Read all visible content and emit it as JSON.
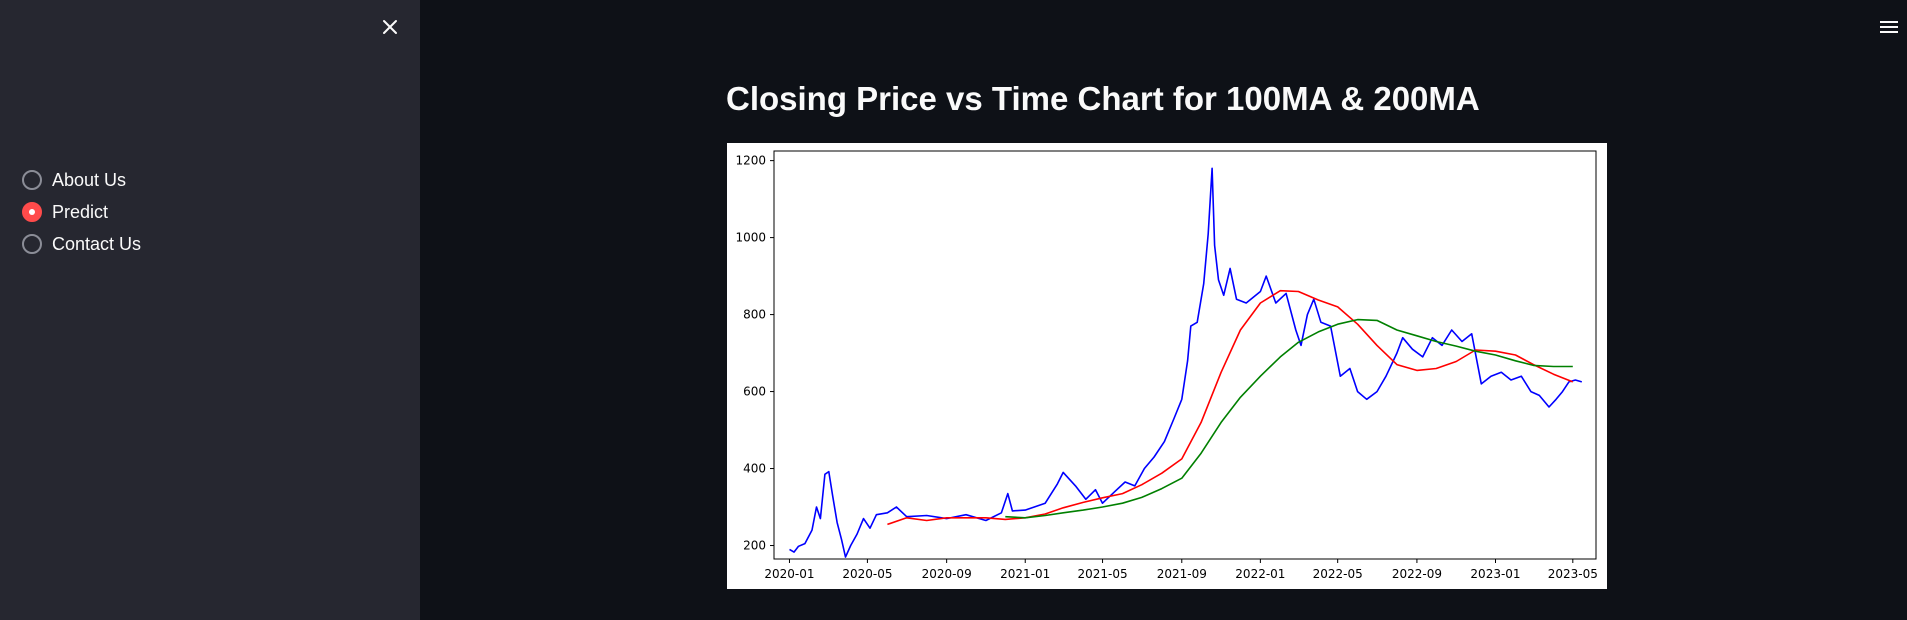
{
  "sidebar": {
    "radio_options": [
      {
        "label": "About Us",
        "selected": false
      },
      {
        "label": "Predict",
        "selected": true
      },
      {
        "label": "Contact Us",
        "selected": false
      }
    ]
  },
  "main": {
    "title": "Closing Price vs Time Chart for 100MA & 200MA"
  },
  "colors": {
    "accent": "#ff4b4b",
    "sidebar_bg": "#262730",
    "main_bg": "#0e1117"
  },
  "chart_data": {
    "type": "line",
    "title": "",
    "xlabel": "",
    "ylabel": "",
    "x_tick_labels": [
      "2020-01",
      "2020-05",
      "2020-09",
      "2021-01",
      "2021-05",
      "2021-09",
      "2022-01",
      "2022-05",
      "2022-09",
      "2023-01",
      "2023-05"
    ],
    "y_ticks": [
      200,
      400,
      600,
      800,
      1000,
      1200
    ],
    "xlim": [
      "2019-12-08",
      "2023-06-06"
    ],
    "ylim": [
      165,
      1225
    ],
    "legend": "none",
    "series": [
      {
        "color": "#0000ff",
        "points": [
          [
            "2020-01-01",
            190
          ],
          [
            "2020-01-08",
            183
          ],
          [
            "2020-01-15",
            198
          ],
          [
            "2020-01-25",
            205
          ],
          [
            "2020-02-05",
            240
          ],
          [
            "2020-02-12",
            300
          ],
          [
            "2020-02-18",
            270
          ],
          [
            "2020-02-25",
            385
          ],
          [
            "2020-03-02",
            392
          ],
          [
            "2020-03-08",
            330
          ],
          [
            "2020-03-15",
            260
          ],
          [
            "2020-03-22",
            215
          ],
          [
            "2020-03-28",
            170
          ],
          [
            "2020-04-05",
            200
          ],
          [
            "2020-04-15",
            230
          ],
          [
            "2020-04-25",
            270
          ],
          [
            "2020-05-05",
            245
          ],
          [
            "2020-05-15",
            280
          ],
          [
            "2020-06-01",
            285
          ],
          [
            "2020-06-15",
            300
          ],
          [
            "2020-07-01",
            275
          ],
          [
            "2020-08-01",
            278
          ],
          [
            "2020-09-01",
            270
          ],
          [
            "2020-10-01",
            280
          ],
          [
            "2020-11-01",
            265
          ],
          [
            "2020-11-25",
            285
          ],
          [
            "2020-12-05",
            335
          ],
          [
            "2020-12-12",
            290
          ],
          [
            "2021-01-01",
            292
          ],
          [
            "2021-01-15",
            300
          ],
          [
            "2021-02-01",
            310
          ],
          [
            "2021-02-20",
            360
          ],
          [
            "2021-03-01",
            390
          ],
          [
            "2021-03-20",
            355
          ],
          [
            "2021-04-05",
            320
          ],
          [
            "2021-04-20",
            345
          ],
          [
            "2021-05-01",
            310
          ],
          [
            "2021-05-20",
            340
          ],
          [
            "2021-06-05",
            365
          ],
          [
            "2021-06-20",
            355
          ],
          [
            "2021-07-05",
            400
          ],
          [
            "2021-07-20",
            430
          ],
          [
            "2021-08-05",
            470
          ],
          [
            "2021-08-20",
            530
          ],
          [
            "2021-09-01",
            580
          ],
          [
            "2021-09-10",
            680
          ],
          [
            "2021-09-15",
            770
          ],
          [
            "2021-09-25",
            780
          ],
          [
            "2021-10-05",
            880
          ],
          [
            "2021-10-12",
            1010
          ],
          [
            "2021-10-18",
            1180
          ],
          [
            "2021-10-22",
            980
          ],
          [
            "2021-10-28",
            890
          ],
          [
            "2021-11-05",
            850
          ],
          [
            "2021-11-15",
            920
          ],
          [
            "2021-11-25",
            840
          ],
          [
            "2021-12-10",
            830
          ],
          [
            "2022-01-01",
            860
          ],
          [
            "2022-01-10",
            900
          ],
          [
            "2022-01-25",
            830
          ],
          [
            "2022-02-10",
            855
          ],
          [
            "2022-02-25",
            760
          ],
          [
            "2022-03-05",
            720
          ],
          [
            "2022-03-15",
            800
          ],
          [
            "2022-03-25",
            840
          ],
          [
            "2022-04-05",
            780
          ],
          [
            "2022-04-20",
            770
          ],
          [
            "2022-05-05",
            640
          ],
          [
            "2022-05-20",
            660
          ],
          [
            "2022-06-01",
            600
          ],
          [
            "2022-06-15",
            580
          ],
          [
            "2022-07-01",
            600
          ],
          [
            "2022-07-15",
            640
          ],
          [
            "2022-08-01",
            700
          ],
          [
            "2022-08-10",
            740
          ],
          [
            "2022-08-25",
            710
          ],
          [
            "2022-09-10",
            690
          ],
          [
            "2022-09-25",
            740
          ],
          [
            "2022-10-10",
            720
          ],
          [
            "2022-10-25",
            760
          ],
          [
            "2022-11-10",
            730
          ],
          [
            "2022-11-25",
            750
          ],
          [
            "2022-12-10",
            620
          ],
          [
            "2022-12-25",
            640
          ],
          [
            "2023-01-10",
            650
          ],
          [
            "2023-01-25",
            630
          ],
          [
            "2023-02-10",
            640
          ],
          [
            "2023-02-25",
            600
          ],
          [
            "2023-03-10",
            590
          ],
          [
            "2023-03-25",
            560
          ],
          [
            "2023-04-05",
            580
          ],
          [
            "2023-04-15",
            600
          ],
          [
            "2023-04-25",
            625
          ],
          [
            "2023-05-05",
            630
          ],
          [
            "2023-05-15",
            625
          ]
        ]
      },
      {
        "color": "#ff0000",
        "points": [
          [
            "2020-06-01",
            255
          ],
          [
            "2020-07-01",
            272
          ],
          [
            "2020-08-01",
            265
          ],
          [
            "2020-09-01",
            272
          ],
          [
            "2020-10-01",
            272
          ],
          [
            "2020-11-01",
            272
          ],
          [
            "2020-12-01",
            268
          ],
          [
            "2021-01-01",
            272
          ],
          [
            "2021-02-01",
            282
          ],
          [
            "2021-03-01",
            298
          ],
          [
            "2021-04-01",
            312
          ],
          [
            "2021-05-01",
            324
          ],
          [
            "2021-06-01",
            335
          ],
          [
            "2021-07-01",
            358
          ],
          [
            "2021-08-01",
            388
          ],
          [
            "2021-09-01",
            425
          ],
          [
            "2021-10-01",
            520
          ],
          [
            "2021-11-01",
            650
          ],
          [
            "2021-12-01",
            760
          ],
          [
            "2022-01-01",
            830
          ],
          [
            "2022-02-01",
            862
          ],
          [
            "2022-03-01",
            860
          ],
          [
            "2022-04-01",
            838
          ],
          [
            "2022-05-01",
            820
          ],
          [
            "2022-06-01",
            775
          ],
          [
            "2022-07-01",
            720
          ],
          [
            "2022-08-01",
            670
          ],
          [
            "2022-09-01",
            655
          ],
          [
            "2022-10-01",
            660
          ],
          [
            "2022-11-01",
            678
          ],
          [
            "2022-12-01",
            708
          ],
          [
            "2023-01-01",
            705
          ],
          [
            "2023-02-01",
            695
          ],
          [
            "2023-03-01",
            670
          ],
          [
            "2023-04-01",
            645
          ],
          [
            "2023-05-01",
            625
          ]
        ]
      },
      {
        "color": "#008000",
        "points": [
          [
            "2020-12-01",
            275
          ],
          [
            "2021-01-01",
            272
          ],
          [
            "2021-02-01",
            278
          ],
          [
            "2021-03-01",
            285
          ],
          [
            "2021-04-01",
            292
          ],
          [
            "2021-05-01",
            300
          ],
          [
            "2021-06-01",
            310
          ],
          [
            "2021-07-01",
            325
          ],
          [
            "2021-08-01",
            348
          ],
          [
            "2021-09-01",
            375
          ],
          [
            "2021-10-01",
            440
          ],
          [
            "2021-11-01",
            520
          ],
          [
            "2021-12-01",
            585
          ],
          [
            "2022-01-01",
            640
          ],
          [
            "2022-02-01",
            690
          ],
          [
            "2022-03-01",
            728
          ],
          [
            "2022-04-01",
            755
          ],
          [
            "2022-05-01",
            775
          ],
          [
            "2022-06-01",
            787
          ],
          [
            "2022-07-01",
            785
          ],
          [
            "2022-08-01",
            760
          ],
          [
            "2022-09-01",
            745
          ],
          [
            "2022-10-01",
            730
          ],
          [
            "2022-11-01",
            718
          ],
          [
            "2022-12-01",
            705
          ],
          [
            "2023-01-01",
            695
          ],
          [
            "2023-02-01",
            680
          ],
          [
            "2023-03-01",
            668
          ],
          [
            "2023-04-01",
            665
          ],
          [
            "2023-05-01",
            665
          ]
        ]
      }
    ]
  }
}
